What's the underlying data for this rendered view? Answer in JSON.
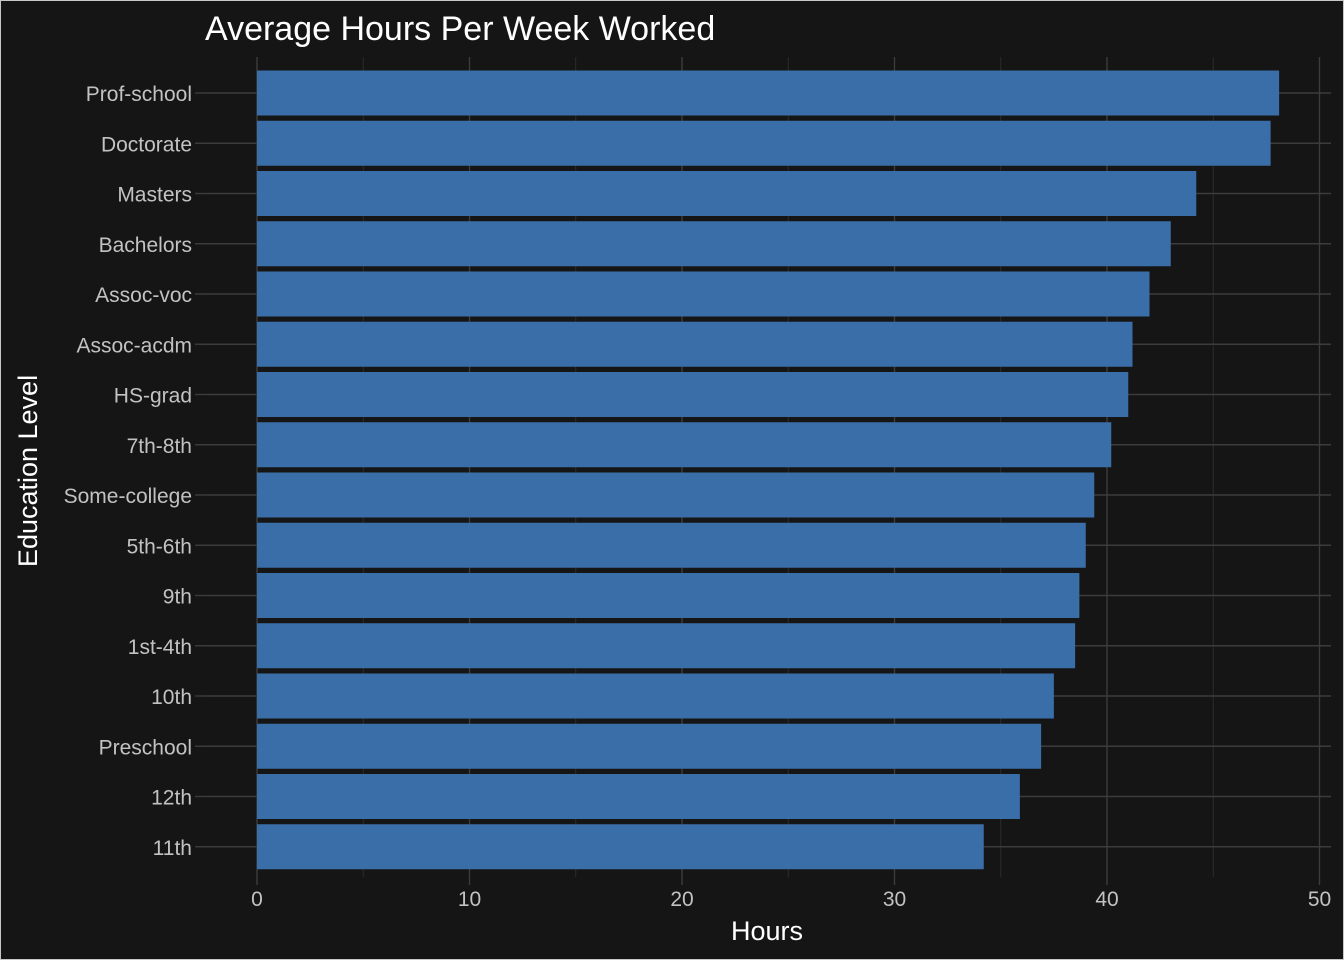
{
  "chart_data": {
    "type": "bar",
    "orientation": "horizontal",
    "title": "Average Hours Per Week Worked",
    "xlabel": "Hours",
    "ylabel": "Education Level",
    "xlim": [
      0,
      50
    ],
    "xticks": [
      "0",
      "10",
      "20",
      "30",
      "40",
      "50"
    ],
    "categories": [
      "Prof-school",
      "Doctorate",
      "Masters",
      "Bachelors",
      "Assoc-voc",
      "Assoc-acdm",
      "HS-grad",
      "7th-8th",
      "Some-college",
      "5th-6th",
      "9th",
      "1st-4th",
      "10th",
      "Preschool",
      "12th",
      "11th"
    ],
    "values": [
      48.1,
      47.7,
      44.2,
      43.0,
      42.0,
      41.2,
      41.0,
      40.2,
      39.4,
      39.0,
      38.7,
      38.5,
      37.5,
      36.9,
      35.9,
      34.2
    ],
    "bar_color": "#3a6ea8",
    "grid": true,
    "legend": "none"
  }
}
